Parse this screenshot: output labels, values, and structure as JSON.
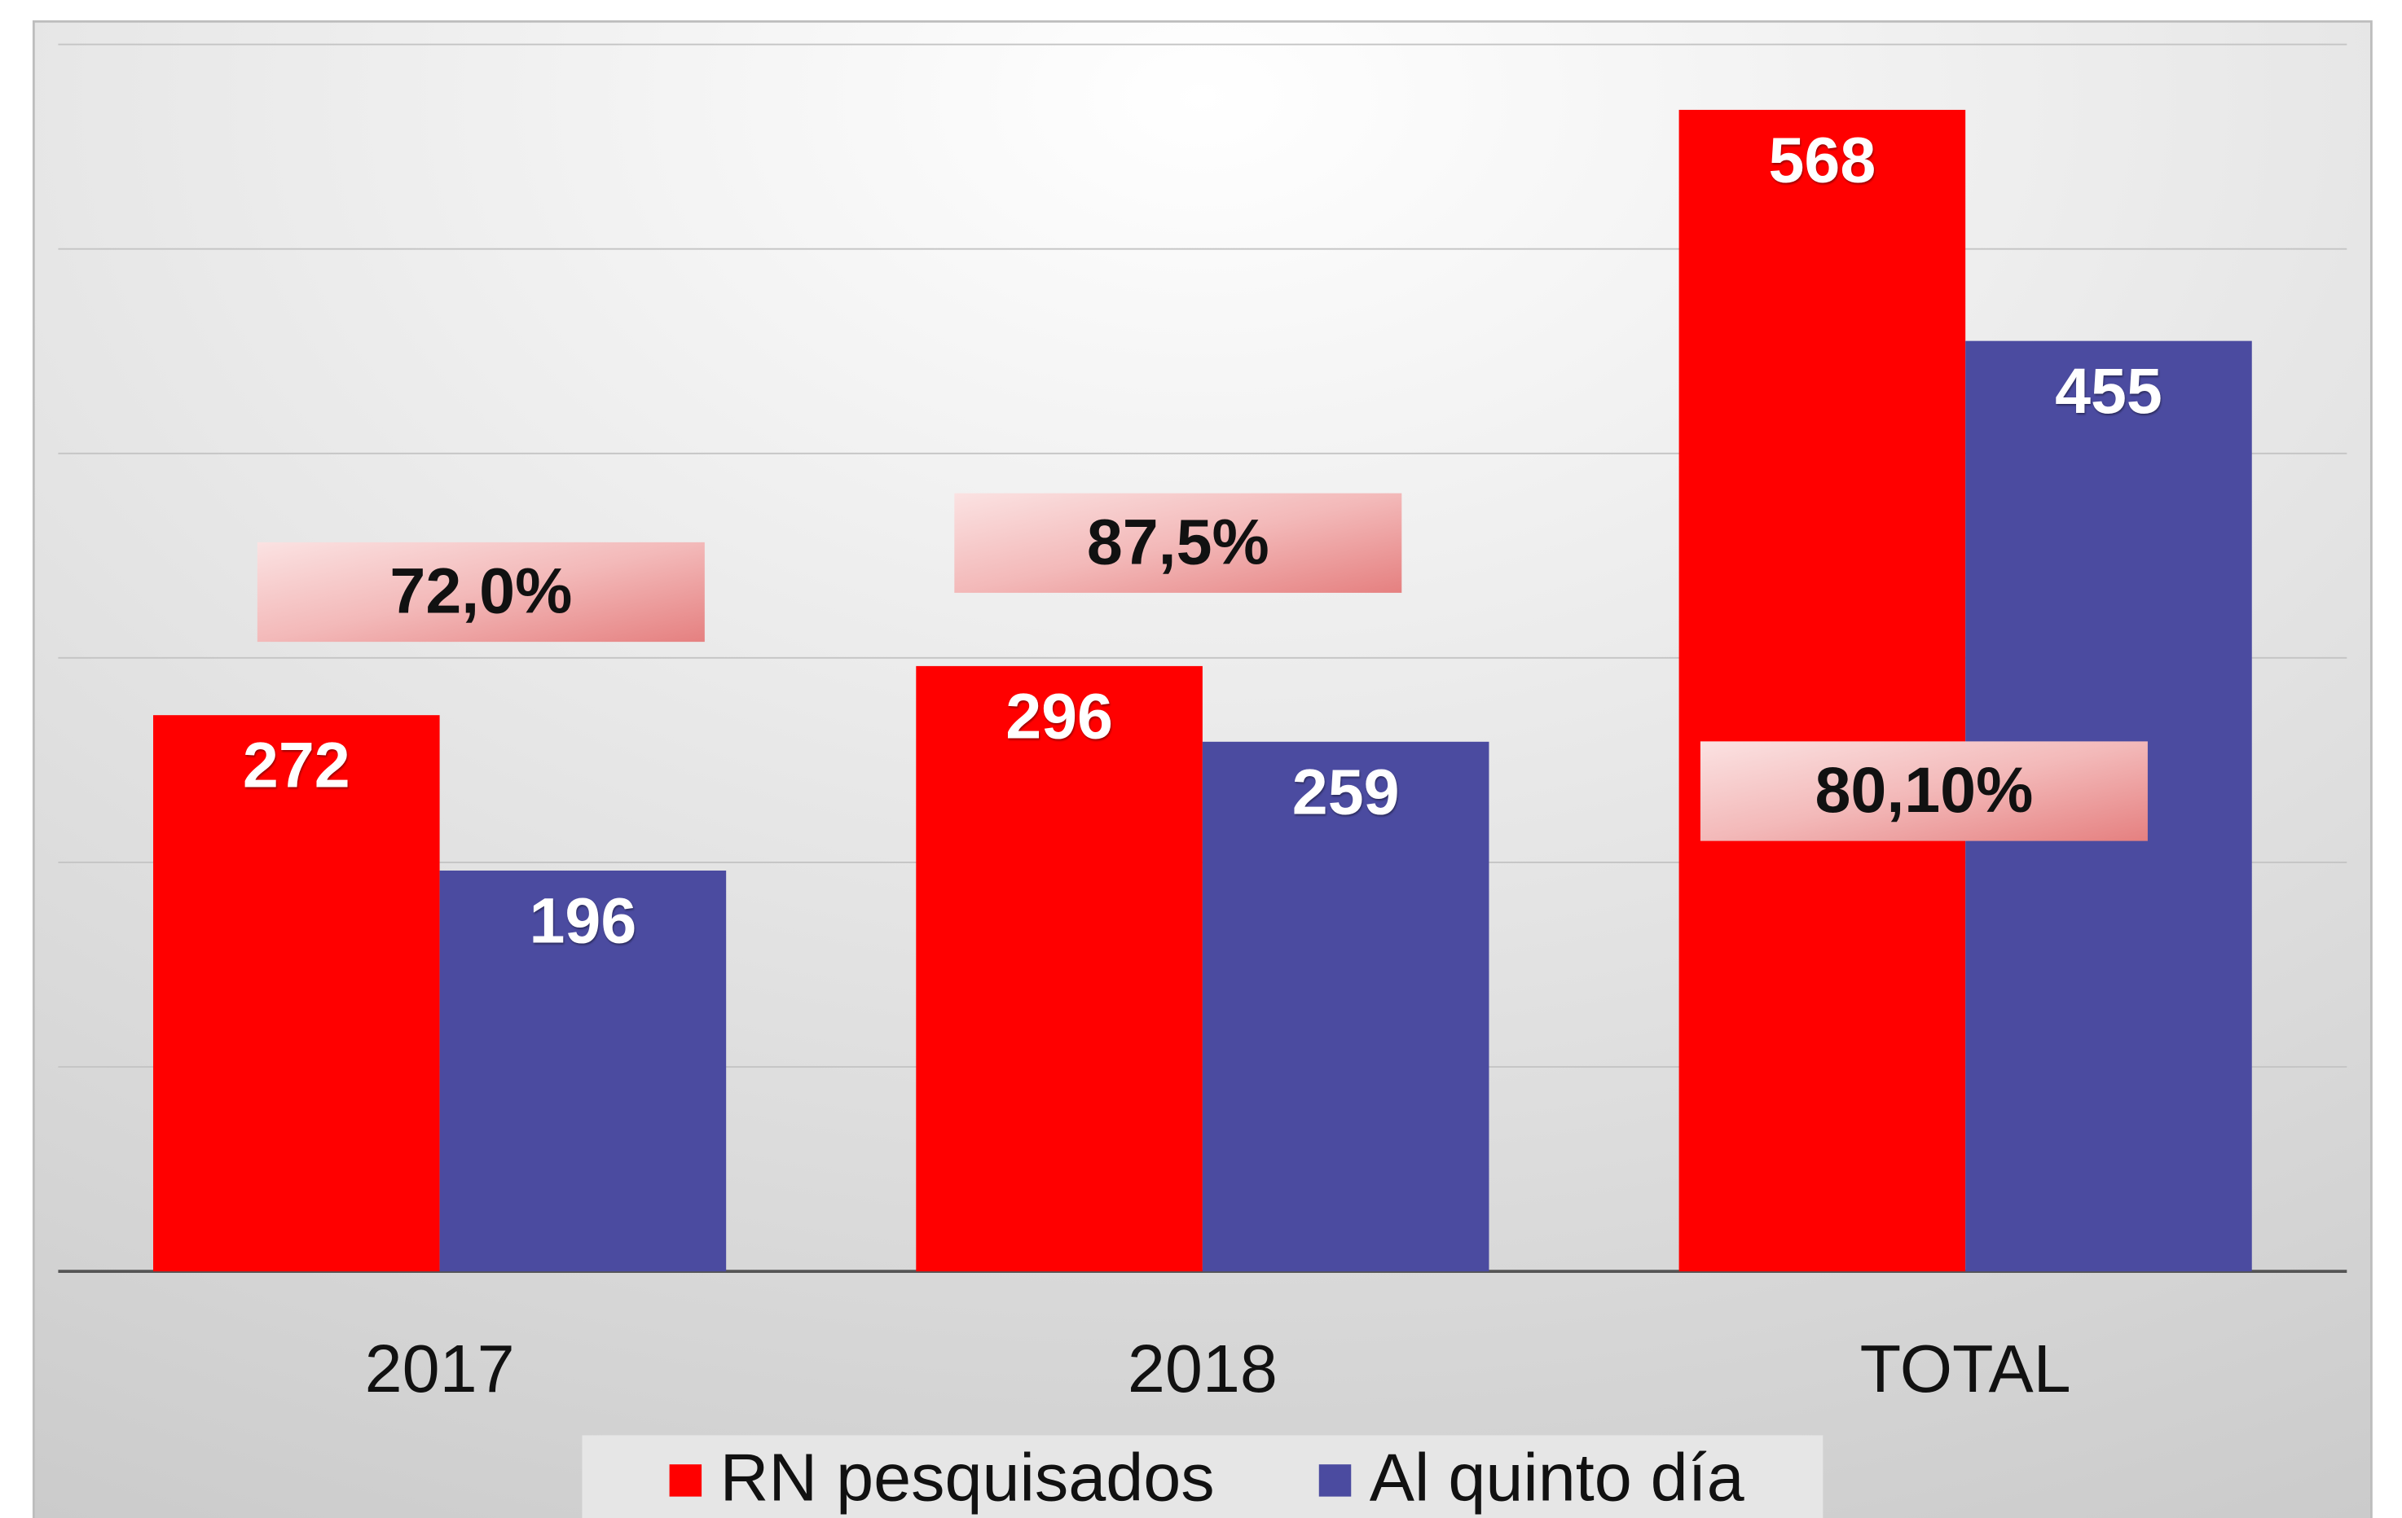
{
  "chart_data": {
    "type": "bar",
    "categories": [
      "2017",
      "2018",
      "TOTAL"
    ],
    "series": [
      {
        "name": "RN pesquisados",
        "color": "#ff0000",
        "values": [
          272,
          296,
          568
        ]
      },
      {
        "name": "Al quinto día",
        "color": "#4b4ba0",
        "values": [
          196,
          259,
          455
        ]
      }
    ],
    "annotations": [
      "72,0%",
      "87,5%",
      "80,10%"
    ],
    "ylim": [
      0,
      600
    ],
    "yticks": [
      0,
      100,
      200,
      300,
      400,
      500,
      600
    ],
    "grid": true,
    "legend": "bottom"
  }
}
